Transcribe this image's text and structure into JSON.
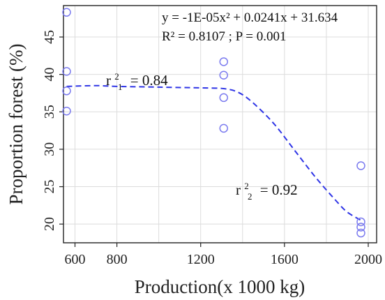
{
  "chart_data": {
    "type": "scatter",
    "title": "",
    "xlabel": "Production(x 1000 kg)",
    "ylabel": "Proportion forest (%)",
    "xlim": [
      545,
      2040
    ],
    "ylim": [
      17.5,
      49.2
    ],
    "xticks": [
      600,
      800,
      1200,
      1600,
      2000
    ],
    "xgrid": [
      600,
      800,
      1000,
      1200,
      1400,
      1600,
      1800,
      2000
    ],
    "yticks": [
      20,
      25,
      30,
      35,
      40,
      45
    ],
    "grid": true,
    "series": [
      {
        "kind": "points",
        "color": "#7b7bef",
        "x": [
          560,
          560,
          560,
          560,
          1310,
          1310,
          1310,
          1310,
          1965,
          1965,
          1965,
          1965
        ],
        "y": [
          48.3,
          40.4,
          37.8,
          35.1,
          41.7,
          39.9,
          36.9,
          32.8,
          27.8,
          20.3,
          19.6,
          18.8
        ]
      },
      {
        "kind": "fitted-curve",
        "color": "#2f35e6",
        "style": "dashed",
        "x": [
          560,
          700,
          800,
          1000,
          1200,
          1310,
          1380,
          1450,
          1550,
          1650,
          1750,
          1850,
          1900,
          1965
        ],
        "y": [
          38.4,
          38.5,
          38.4,
          38.3,
          38.2,
          38.1,
          37.6,
          36.2,
          33.4,
          29.8,
          26.2,
          23.0,
          21.6,
          20.5
        ]
      }
    ],
    "annotations": {
      "equation": "y = -1E-05x² + 0.0241x + 31.634",
      "stats": "R² = 0.8107 ; P = 0.001",
      "r1_base": "r",
      "r1_sup": "2",
      "r1_sub": "1",
      "r1_value": "= 0.84",
      "r2_base": "r",
      "r2_sup": "2",
      "r2_sub": "2",
      "r2_value": "= 0.92"
    }
  }
}
